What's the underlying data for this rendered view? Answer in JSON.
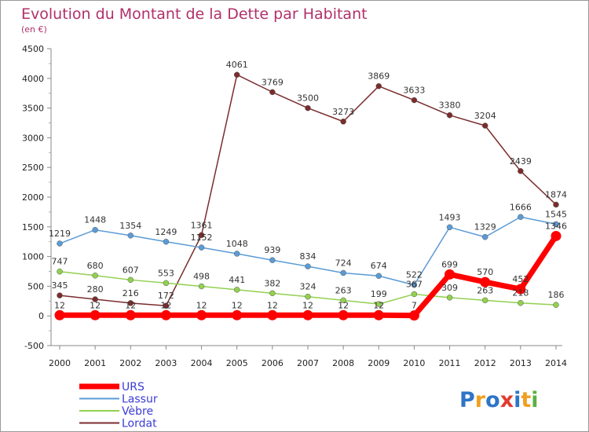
{
  "chart_data": {
    "type": "line",
    "title": "Evolution du Montant de la Dette par Habitant",
    "subtitle": "(en €)",
    "x": [
      "2000",
      "2001",
      "2002",
      "2003",
      "2004",
      "2005",
      "2006",
      "2007",
      "2008",
      "2009",
      "2010",
      "2011",
      "2012",
      "2013",
      "2014"
    ],
    "yticks": [
      -500,
      0,
      500,
      1000,
      1500,
      2000,
      2500,
      3000,
      3500,
      4000,
      4500
    ],
    "ylim": [
      -500,
      4500
    ],
    "grid": false,
    "legend_position": "bottom-left",
    "series": [
      {
        "name": "URS",
        "color": "#ff0000",
        "values": [
          12,
          12,
          12,
          12,
          12,
          12,
          12,
          12,
          12,
          12,
          7,
          699,
          570,
          452,
          1346
        ],
        "labels": [
          "12",
          "12",
          "12",
          "12",
          "12",
          "12",
          "12",
          "12",
          "12",
          "12",
          "7",
          "699",
          "570",
          "452",
          "1346"
        ]
      },
      {
        "name": "Lassur",
        "color": "#5b9bd5",
        "values": [
          1219,
          1448,
          1354,
          1249,
          1152,
          1048,
          939,
          834,
          724,
          674,
          522,
          1493,
          1329,
          1666,
          1545
        ],
        "labels": [
          "1219",
          "1448",
          "1354",
          "1249",
          "1152",
          "1048",
          "939",
          "834",
          "724",
          "674",
          "522",
          "1493",
          "1329",
          "1666",
          "1545"
        ]
      },
      {
        "name": "Vèbre",
        "color": "#92d050",
        "values": [
          747,
          680,
          607,
          553,
          498,
          441,
          382,
          324,
          263,
          199,
          367,
          309,
          263,
          218,
          186
        ],
        "labels": [
          "747",
          "680",
          "607",
          "553",
          "498",
          "441",
          "382",
          "324",
          "263",
          "199",
          "367",
          "309",
          "263",
          "218",
          "186"
        ]
      },
      {
        "name": "Lordat",
        "color": "#7b2c2c",
        "values": [
          345,
          280,
          216,
          172,
          1361,
          4061,
          3769,
          3500,
          3273,
          3869,
          3633,
          3380,
          3204,
          2439,
          1874
        ],
        "labels": [
          "345",
          "280",
          "216",
          "172",
          "1361",
          "4061",
          "3769",
          "3500",
          "3273",
          "3869",
          "3633",
          "3380",
          "3204",
          "2439",
          "1874"
        ]
      }
    ]
  },
  "brand": {
    "logo_text": "Proxiti",
    "letters": [
      "P",
      "r",
      "o",
      "x",
      "i",
      "t",
      "i"
    ],
    "letter_colors": [
      "#2e75c6",
      "#f0a020",
      "#2e75c6",
      "#e03c31",
      "#2e75c6",
      "#f0a020",
      "#5bb040"
    ]
  }
}
